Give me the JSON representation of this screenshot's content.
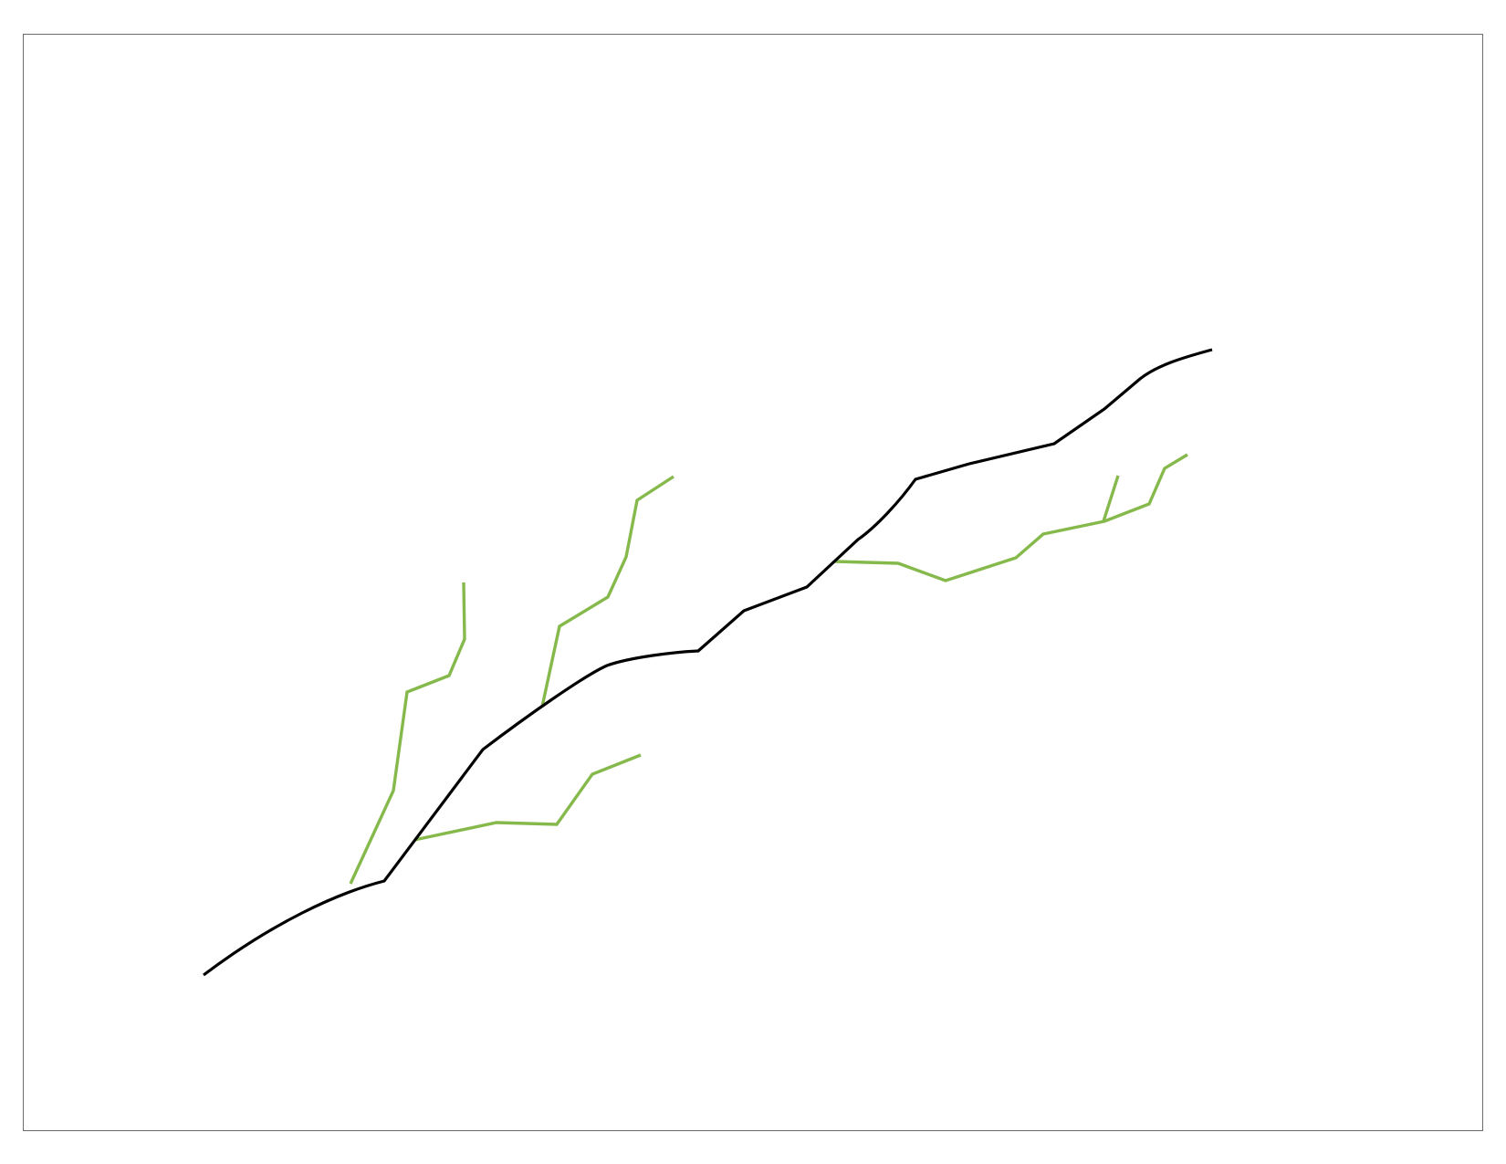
{
  "diagram": {
    "type": "line-network",
    "colors": {
      "frame_border": "#6b6b6b",
      "background": "#ffffff",
      "main_line": "#000000",
      "branch_lines": "#86b94c"
    }
  }
}
